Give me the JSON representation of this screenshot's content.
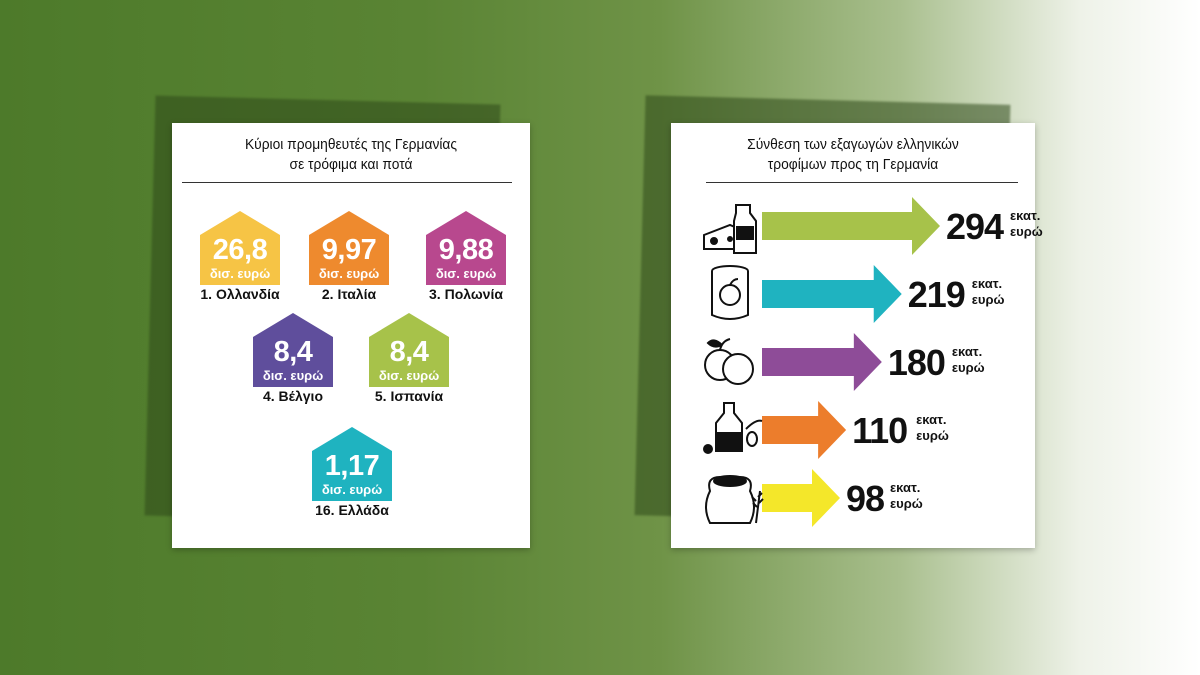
{
  "left_panel": {
    "title_line1": "Κύριοι προμηθευτές της Γερμανίας",
    "title_line2": "σε τρόφιμα και ποτά"
  },
  "right_panel": {
    "title_line1": "Σύνθεση των εξαγωγών ελληνικών",
    "title_line2": "τροφίμων προς τη Γερμανία"
  },
  "chart_data": [
    {
      "type": "bar",
      "title": "Κύριοι προμηθευτές της Γερμανίας σε τρόφιμα και ποτά",
      "unit": "δισ. ευρώ",
      "categories": [
        "1. Ολλανδία",
        "2. Ιταλία",
        "3. Πολωνία",
        "4. Βέλγιο",
        "5. Ισπανία",
        "16. Ελλάδα"
      ],
      "values": [
        26.8,
        9.97,
        9.88,
        8.4,
        8.4,
        1.17
      ],
      "value_labels": [
        "26,8",
        "9,97",
        "9,88",
        "8,4",
        "8,4",
        "1,17"
      ],
      "colors": [
        "#f6c445",
        "#ee8a2e",
        "#b8488e",
        "#5f4e9c",
        "#a7c24a",
        "#1fb3c0"
      ]
    },
    {
      "type": "bar",
      "title": "Σύνθεση των εξαγωγών ελληνικών τροφίμων προς τη Γερμανία",
      "unit_line1": "εκατ.",
      "unit_line2": "ευρώ",
      "categories": [
        "cheese-milk",
        "canned-fruit",
        "fruit",
        "olive-oil",
        "flour-grain"
      ],
      "values": [
        294,
        219,
        180,
        110,
        98
      ],
      "colors": [
        "#a7c24a",
        "#1fb3c0",
        "#8e4c98",
        "#ec7d2c",
        "#f4e72a"
      ],
      "icons": [
        "cheese-milk-icon",
        "canned-fruit-icon",
        "apple-peach-icon",
        "olive-oil-icon",
        "flour-sack-icon"
      ]
    }
  ]
}
